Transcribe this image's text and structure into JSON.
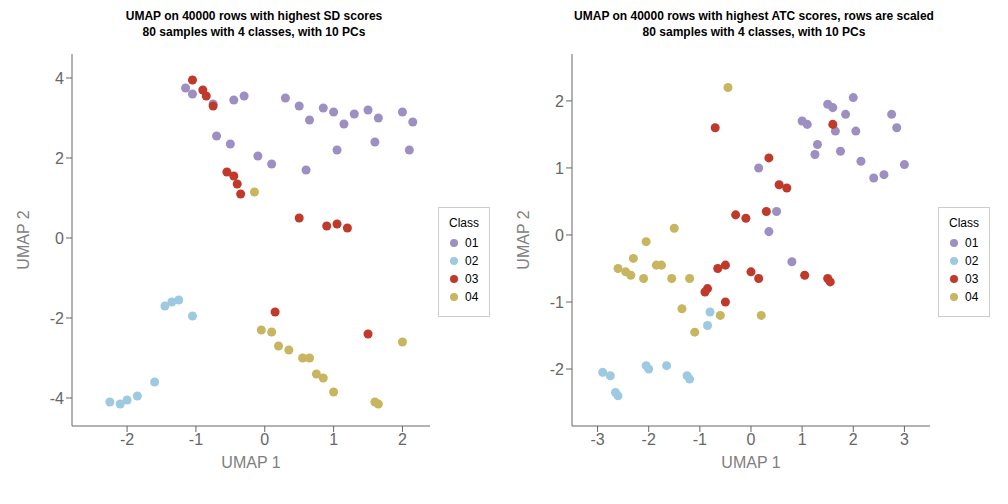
{
  "chart_data": [
    {
      "type": "scatter",
      "title": "UMAP on 40000 rows with highest SD scores\n80 samples with 4 classes, with 10 PCs",
      "xlabel": "UMAP 1",
      "ylabel": "UMAP 2",
      "xlim": [
        -2.8,
        2.4
      ],
      "ylim": [
        -4.7,
        4.6
      ],
      "xticks": [
        -2,
        -1,
        0,
        1,
        2
      ],
      "yticks": [
        -4,
        -2,
        0,
        2,
        4
      ],
      "grid": false,
      "legend": "right",
      "legend_title": "Class",
      "series": [
        {
          "name": "01",
          "color": "#9E8FC2",
          "marker": "circle",
          "x": [
            -1.15,
            -1.05,
            -0.75,
            -0.45,
            -0.3,
            0.3,
            0.5,
            0.65,
            0.85,
            1.0,
            1.15,
            1.3,
            1.5,
            1.65,
            2.0,
            2.15,
            -0.7,
            -0.5,
            -0.1,
            0.1,
            0.6,
            1.05,
            1.6,
            2.1
          ],
          "y": [
            3.75,
            3.6,
            3.35,
            3.45,
            3.55,
            3.5,
            3.3,
            2.95,
            3.25,
            3.15,
            2.85,
            3.1,
            3.2,
            3.0,
            3.15,
            2.9,
            2.55,
            2.35,
            2.05,
            1.85,
            1.7,
            2.2,
            2.4,
            2.2
          ]
        },
        {
          "name": "02",
          "color": "#9ECAE1",
          "marker": "circle",
          "x": [
            -2.25,
            -2.1,
            -2.0,
            -1.85,
            -1.6,
            -1.45,
            -1.35,
            -1.25,
            -1.05
          ],
          "y": [
            -4.1,
            -4.15,
            -4.05,
            -3.95,
            -3.6,
            -1.7,
            -1.6,
            -1.55,
            -1.95
          ]
        },
        {
          "name": "03",
          "color": "#C0392B",
          "marker": "circle",
          "x": [
            -1.05,
            -0.9,
            -0.85,
            -0.75,
            -0.55,
            -0.45,
            -0.4,
            -0.35,
            0.15,
            0.9,
            1.05,
            1.2,
            1.5,
            0.5
          ],
          "y": [
            3.95,
            3.7,
            3.55,
            3.3,
            1.65,
            1.55,
            1.35,
            1.1,
            -1.85,
            0.3,
            0.35,
            0.25,
            -2.4,
            0.5
          ]
        },
        {
          "name": "04",
          "color": "#C8B560",
          "marker": "circle",
          "x": [
            -0.15,
            -0.05,
            0.1,
            0.2,
            0.35,
            0.55,
            0.65,
            0.75,
            0.85,
            1.0,
            1.6,
            1.65,
            2.0
          ],
          "y": [
            1.15,
            -2.3,
            -2.35,
            -2.7,
            -2.8,
            -3.0,
            -3.0,
            -3.4,
            -3.5,
            -3.85,
            -4.1,
            -4.15,
            -2.6
          ]
        }
      ]
    },
    {
      "type": "scatter",
      "title": "UMAP on 40000 rows with highest ATC scores, rows are scaled\n80 samples with 4 classes, with 10 PCs",
      "xlabel": "UMAP 1",
      "ylabel": "UMAP 2",
      "xlim": [
        -3.5,
        3.5
      ],
      "ylim": [
        -2.85,
        2.7
      ],
      "xticks": [
        -3,
        -2,
        -1,
        0,
        1,
        2,
        3
      ],
      "yticks": [
        -2,
        -1,
        0,
        1,
        2
      ],
      "grid": false,
      "legend": "right",
      "legend_title": "Class",
      "series": [
        {
          "name": "01",
          "color": "#9E8FC2",
          "marker": "circle",
          "x": [
            0.15,
            1.0,
            1.1,
            1.3,
            1.5,
            1.6,
            1.65,
            1.75,
            1.85,
            2.0,
            2.05,
            2.15,
            2.4,
            2.6,
            2.75,
            2.85,
            3.0,
            1.25,
            0.5,
            0.35,
            0.8
          ],
          "y": [
            1.0,
            1.7,
            1.65,
            1.35,
            1.95,
            1.9,
            1.55,
            1.25,
            1.8,
            2.05,
            1.55,
            1.1,
            0.85,
            0.9,
            1.8,
            1.6,
            1.05,
            1.2,
            0.35,
            0.05,
            -0.4
          ]
        },
        {
          "name": "02",
          "color": "#9ECAE1",
          "marker": "circle",
          "x": [
            -2.9,
            -2.75,
            -2.65,
            -2.6,
            -2.05,
            -2.0,
            -1.65,
            -1.25,
            -1.2,
            -0.85,
            -0.8
          ],
          "y": [
            -2.05,
            -2.1,
            -2.35,
            -2.4,
            -1.95,
            -2.0,
            -1.95,
            -2.1,
            -2.15,
            -1.35,
            -1.15
          ]
        },
        {
          "name": "03",
          "color": "#C0392B",
          "marker": "circle",
          "x": [
            -0.5,
            -0.3,
            -0.1,
            0.0,
            0.15,
            0.3,
            0.35,
            0.55,
            0.7,
            1.05,
            1.5,
            1.55,
            1.6,
            -0.85,
            -0.9,
            -0.65,
            -0.5,
            -0.7
          ],
          "y": [
            -0.45,
            0.3,
            0.25,
            -0.55,
            -0.65,
            0.35,
            1.15,
            0.75,
            0.7,
            -0.6,
            -0.65,
            -0.7,
            1.65,
            -0.8,
            -0.85,
            -0.5,
            -1.0,
            1.6
          ]
        },
        {
          "name": "04",
          "color": "#C8B560",
          "marker": "circle",
          "x": [
            -2.6,
            -2.45,
            -2.35,
            -2.3,
            -2.1,
            -2.05,
            -1.85,
            -1.75,
            -1.55,
            -1.5,
            -1.35,
            -1.2,
            -1.1,
            -0.6,
            -0.45,
            0.2
          ],
          "y": [
            -0.5,
            -0.55,
            -0.6,
            -0.35,
            -0.65,
            -0.1,
            -0.45,
            -0.45,
            -0.65,
            0.1,
            -1.1,
            -0.65,
            -1.45,
            -1.2,
            2.2,
            -1.2
          ]
        }
      ]
    }
  ]
}
